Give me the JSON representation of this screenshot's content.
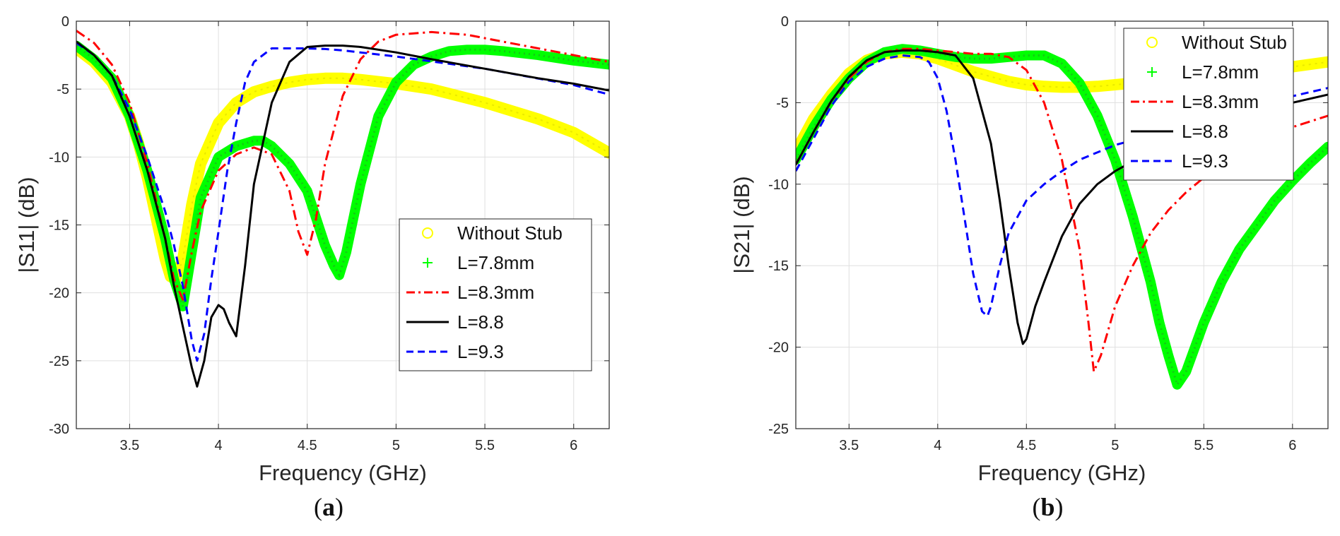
{
  "chart_data": [
    {
      "type": "line",
      "panel_caption": "(a)",
      "xlabel": "Frequency (GHz)",
      "ylabel": "|S11| (dB)",
      "xlim": [
        3.2,
        6.2
      ],
      "ylim": [
        -30,
        0
      ],
      "xticks": [
        3.5,
        4,
        4.5,
        5,
        5.5,
        6
      ],
      "xtick_labels": [
        "3.5",
        "4",
        "4.5",
        "5",
        "5.5",
        "6"
      ],
      "yticks": [
        0,
        -5,
        -10,
        -15,
        -20,
        -25,
        -30
      ],
      "ytick_labels": [
        "0",
        "-5",
        "-10",
        "-15",
        "-20",
        "-25",
        "-30"
      ],
      "grid": true,
      "legend_position": "lower-right",
      "series": [
        {
          "name": "Without Stub",
          "color": "#ffff00",
          "style": "circle-markers",
          "x": [
            3.2,
            3.3,
            3.4,
            3.5,
            3.55,
            3.6,
            3.65,
            3.7,
            3.73,
            3.76,
            3.8,
            3.85,
            3.9,
            4.0,
            4.1,
            4.2,
            4.3,
            4.4,
            4.5,
            4.6,
            4.7,
            4.8,
            5.0,
            5.2,
            5.5,
            5.8,
            6.0,
            6.2
          ],
          "y": [
            -2,
            -3,
            -4.5,
            -7,
            -9,
            -11.5,
            -14.5,
            -17.5,
            -18.8,
            -19,
            -17.5,
            -13.5,
            -10.5,
            -7.5,
            -6,
            -5.2,
            -4.8,
            -4.5,
            -4.3,
            -4.2,
            -4.2,
            -4.3,
            -4.6,
            -5,
            -6,
            -7.2,
            -8.2,
            -9.7
          ]
        },
        {
          "name": "L=7.8mm",
          "color": "#00ff00",
          "style": "plus-markers",
          "x": [
            3.2,
            3.3,
            3.4,
            3.5,
            3.6,
            3.7,
            3.75,
            3.8,
            3.85,
            3.9,
            4.0,
            4.1,
            4.2,
            4.25,
            4.3,
            4.4,
            4.5,
            4.55,
            4.6,
            4.65,
            4.68,
            4.72,
            4.8,
            4.9,
            5.0,
            5.1,
            5.2,
            5.3,
            5.4,
            5.5,
            5.6,
            5.8,
            6.0,
            6.2
          ],
          "y": [
            -1.8,
            -2.8,
            -4.2,
            -7,
            -11,
            -16,
            -19,
            -21,
            -17,
            -13,
            -10,
            -9.2,
            -8.8,
            -8.8,
            -9.2,
            -10.5,
            -12.5,
            -14.5,
            -16.5,
            -18,
            -18.7,
            -17,
            -12,
            -7,
            -4.5,
            -3.2,
            -2.6,
            -2.2,
            -2.1,
            -2.1,
            -2.2,
            -2.5,
            -2.9,
            -3.2
          ]
        },
        {
          "name": "L=8.3mm",
          "color": "#ff0000",
          "style": "dash-dot",
          "x": [
            3.2,
            3.3,
            3.4,
            3.5,
            3.6,
            3.7,
            3.75,
            3.8,
            3.85,
            3.9,
            4.0,
            4.1,
            4.2,
            4.3,
            4.4,
            4.45,
            4.5,
            4.55,
            4.6,
            4.7,
            4.8,
            4.9,
            5.0,
            5.2,
            5.4,
            5.6,
            5.8,
            6.0,
            6.2
          ],
          "y": [
            -0.7,
            -1.6,
            -3.2,
            -6,
            -10.5,
            -16,
            -19,
            -20.5,
            -17,
            -14,
            -11,
            -9.8,
            -9.3,
            -9.8,
            -12.5,
            -15.5,
            -17.2,
            -14.5,
            -10.5,
            -5.5,
            -2.8,
            -1.5,
            -1,
            -0.8,
            -1,
            -1.5,
            -2,
            -2.5,
            -3
          ]
        },
        {
          "name": "L=8.8",
          "color": "#000000",
          "style": "solid",
          "x": [
            3.2,
            3.3,
            3.4,
            3.5,
            3.6,
            3.7,
            3.75,
            3.8,
            3.85,
            3.88,
            3.92,
            3.96,
            4.0,
            4.03,
            4.06,
            4.1,
            4.15,
            4.2,
            4.3,
            4.4,
            4.5,
            4.6,
            4.7,
            4.8,
            5.0,
            5.2,
            5.5,
            5.8,
            6.0,
            6.2
          ],
          "y": [
            -1.5,
            -2.5,
            -4,
            -7,
            -11,
            -16,
            -19.5,
            -22.5,
            -25.5,
            -26.9,
            -25,
            -21.8,
            -20.9,
            -21.2,
            -22.2,
            -23.2,
            -18,
            -12,
            -6,
            -3,
            -1.9,
            -1.8,
            -1.8,
            -1.9,
            -2.3,
            -2.8,
            -3.5,
            -4.2,
            -4.6,
            -5.1
          ]
        },
        {
          "name": "L=9.3",
          "color": "#0000ff",
          "style": "dashed",
          "x": [
            3.2,
            3.3,
            3.4,
            3.5,
            3.6,
            3.7,
            3.75,
            3.8,
            3.85,
            3.88,
            3.92,
            3.96,
            4.0,
            4.05,
            4.1,
            4.15,
            4.2,
            4.3,
            4.4,
            4.5,
            4.6,
            4.7,
            5.0,
            5.5,
            6.0,
            6.2
          ],
          "y": [
            -1.6,
            -2.5,
            -4,
            -6.5,
            -10,
            -14,
            -16.5,
            -19.5,
            -23.5,
            -25,
            -23,
            -19,
            -15.5,
            -11,
            -7.5,
            -4.5,
            -3,
            -2,
            -2,
            -2,
            -2.05,
            -2.15,
            -2.6,
            -3.5,
            -4.7,
            -5.4
          ]
        }
      ]
    },
    {
      "type": "line",
      "panel_caption": "(b)",
      "xlabel": "Frequency (GHz)",
      "ylabel": "|S21| (dB)",
      "xlim": [
        3.2,
        6.2
      ],
      "ylim": [
        -25,
        0
      ],
      "xticks": [
        3.5,
        4,
        4.5,
        5,
        5.5,
        6
      ],
      "xtick_labels": [
        "3.5",
        "4",
        "4.5",
        "5",
        "5.5",
        "6"
      ],
      "yticks": [
        0,
        -5,
        -10,
        -15,
        -20,
        -25
      ],
      "ytick_labels": [
        "0",
        "-5",
        "-10",
        "-15",
        "-20",
        "-25"
      ],
      "grid": true,
      "legend_position": "top-right",
      "series": [
        {
          "name": "Without Stub",
          "color": "#ffff00",
          "style": "circle-markers",
          "x": [
            3.2,
            3.3,
            3.4,
            3.5,
            3.6,
            3.7,
            3.8,
            3.9,
            4.0,
            4.1,
            4.2,
            4.3,
            4.4,
            4.5,
            4.6,
            4.7,
            4.8,
            4.9,
            5.0,
            5.2,
            5.5,
            5.8,
            6.0,
            6.2
          ],
          "y": [
            -8,
            -6,
            -4.5,
            -3.2,
            -2.4,
            -2,
            -1.9,
            -2,
            -2.3,
            -2.7,
            -3.1,
            -3.4,
            -3.7,
            -3.9,
            -4.0,
            -4.05,
            -4.05,
            -4.0,
            -3.9,
            -3.7,
            -3.4,
            -3.0,
            -2.8,
            -2.5
          ]
        },
        {
          "name": "L=7.8mm",
          "color": "#00ff00",
          "style": "plus-markers",
          "x": [
            3.2,
            3.3,
            3.4,
            3.5,
            3.6,
            3.7,
            3.8,
            3.9,
            4.0,
            4.1,
            4.2,
            4.3,
            4.4,
            4.5,
            4.6,
            4.7,
            4.8,
            4.9,
            5.0,
            5.1,
            5.2,
            5.25,
            5.3,
            5.35,
            5.4,
            5.5,
            5.6,
            5.7,
            5.8,
            5.9,
            6.0,
            6.1,
            6.2
          ],
          "y": [
            -8.5,
            -6.5,
            -4.8,
            -3.5,
            -2.5,
            -1.9,
            -1.7,
            -1.8,
            -2,
            -2.2,
            -2.3,
            -2.3,
            -2.2,
            -2.1,
            -2.1,
            -2.6,
            -3.8,
            -5.8,
            -8.5,
            -12,
            -16,
            -18.5,
            -20.5,
            -22.3,
            -21.5,
            -18.5,
            -16,
            -14,
            -12.5,
            -11,
            -9.8,
            -8.7,
            -7.7
          ]
        },
        {
          "name": "L=8.3mm",
          "color": "#ff0000",
          "style": "dash-dot",
          "x": [
            3.2,
            3.3,
            3.4,
            3.5,
            3.6,
            3.7,
            3.8,
            3.9,
            4.0,
            4.1,
            4.2,
            4.3,
            4.4,
            4.5,
            4.6,
            4.7,
            4.8,
            4.85,
            4.88,
            4.92,
            5.0,
            5.1,
            5.2,
            5.3,
            5.4,
            5.5,
            5.6,
            5.8,
            6.0,
            6.2
          ],
          "y": [
            -8.8,
            -6.8,
            -4.9,
            -3.5,
            -2.5,
            -1.9,
            -1.7,
            -1.7,
            -1.8,
            -1.9,
            -2,
            -2,
            -2.2,
            -3,
            -5,
            -8.5,
            -14,
            -18.5,
            -21.5,
            -20.5,
            -17.5,
            -15,
            -13,
            -11.6,
            -10.5,
            -9.6,
            -8.8,
            -7.5,
            -6.5,
            -5.8
          ]
        },
        {
          "name": "L=8.8",
          "color": "#000000",
          "style": "solid",
          "x": [
            3.2,
            3.3,
            3.4,
            3.5,
            3.6,
            3.7,
            3.8,
            3.9,
            4.0,
            4.1,
            4.2,
            4.3,
            4.35,
            4.4,
            4.45,
            4.48,
            4.5,
            4.55,
            4.6,
            4.7,
            4.8,
            4.9,
            5.0,
            5.2,
            5.4,
            5.6,
            5.8,
            6.0,
            6.2
          ],
          "y": [
            -8.8,
            -6.8,
            -4.9,
            -3.4,
            -2.4,
            -1.9,
            -1.8,
            -1.8,
            -1.9,
            -2.1,
            -3.5,
            -7.5,
            -11,
            -15,
            -18.5,
            -19.8,
            -19.5,
            -17.5,
            -16,
            -13.2,
            -11.2,
            -10,
            -9.2,
            -8,
            -7,
            -6.3,
            -5.6,
            -5,
            -4.5
          ]
        },
        {
          "name": "L=9.3",
          "color": "#0000ff",
          "style": "dashed",
          "x": [
            3.2,
            3.3,
            3.4,
            3.5,
            3.6,
            3.7,
            3.8,
            3.9,
            3.95,
            4.0,
            4.05,
            4.1,
            4.15,
            4.2,
            4.25,
            4.28,
            4.3,
            4.35,
            4.4,
            4.5,
            4.6,
            4.7,
            4.8,
            5.0,
            5.2,
            5.4,
            5.6,
            5.8,
            6.0,
            6.2
          ],
          "y": [
            -9.2,
            -7.2,
            -5.2,
            -3.7,
            -2.8,
            -2.3,
            -2.1,
            -2.2,
            -2.5,
            -3.5,
            -5.5,
            -8.5,
            -12,
            -15.5,
            -17.8,
            -18.1,
            -17.5,
            -15,
            -13,
            -11,
            -10,
            -9.2,
            -8.5,
            -7.6,
            -7,
            -6.4,
            -5.8,
            -5.2,
            -4.6,
            -4.1
          ]
        }
      ]
    }
  ]
}
